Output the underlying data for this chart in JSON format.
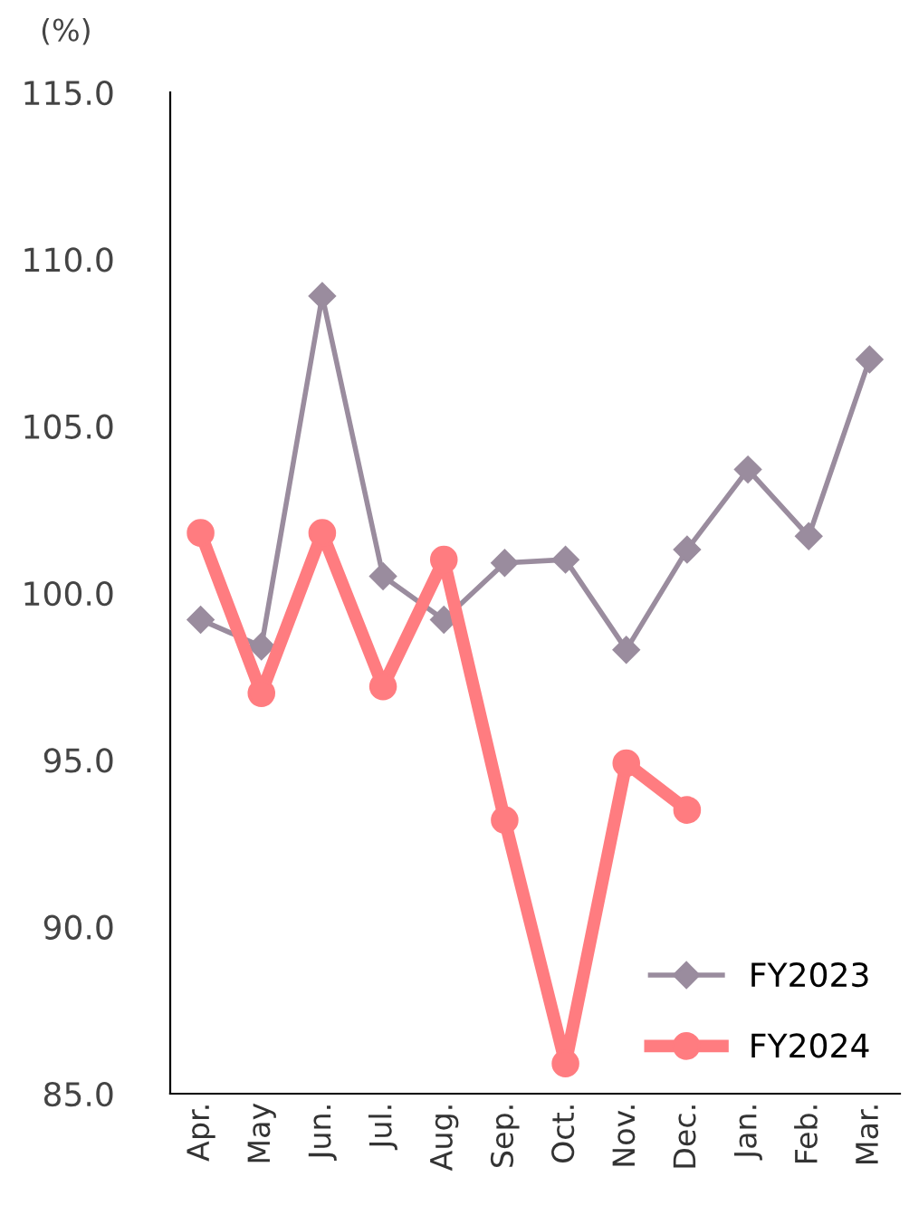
{
  "chart_data": {
    "type": "line",
    "ylabel": "(%)",
    "categories": [
      "Apr.",
      "May",
      "Jun.",
      "Jul.",
      "Aug.",
      "Sep.",
      "Oct.",
      "Nov.",
      "Dec.",
      "Jan.",
      "Feb.",
      "Mar."
    ],
    "series": [
      {
        "name": "FY2023",
        "color": "#9a8c9e",
        "marker": "diamond",
        "values": [
          99.2,
          98.4,
          108.9,
          100.5,
          99.2,
          100.9,
          101.0,
          98.3,
          101.3,
          103.7,
          101.7,
          107.0
        ]
      },
      {
        "name": "FY2024",
        "color": "#ff7c80",
        "marker": "circle",
        "values": [
          101.8,
          97.0,
          101.8,
          97.2,
          101.0,
          93.2,
          85.9,
          94.9,
          93.5,
          null,
          null,
          null
        ]
      }
    ],
    "ylim": [
      85,
      115
    ],
    "yticks": [
      {
        "value": 85,
        "label": "85.0"
      },
      {
        "value": 90,
        "label": "90.0"
      },
      {
        "value": 95,
        "label": "95.0"
      },
      {
        "value": 100,
        "label": "100.0"
      },
      {
        "value": 105,
        "label": "105.0"
      },
      {
        "value": 110,
        "label": "110.0"
      },
      {
        "value": 115,
        "label": "115.0"
      }
    ],
    "grid": false,
    "legend": "bottom right"
  }
}
